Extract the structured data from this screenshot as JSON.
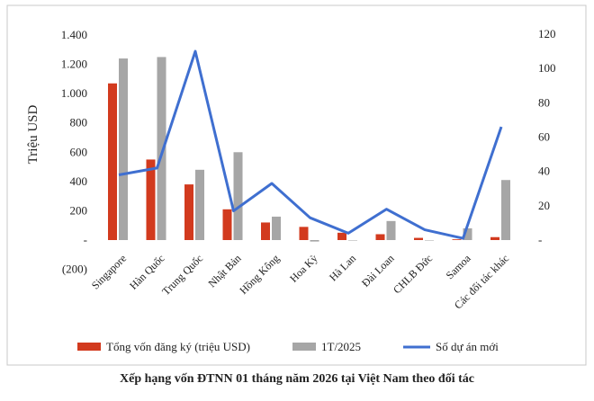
{
  "caption": "Xếp hạng vốn ĐTNN 01 tháng năm 2026 tại Việt Nam theo đối tác",
  "chart_data": {
    "type": "bar",
    "categories": [
      "Singapore",
      "Hàn Quốc",
      "Trung Quốc",
      "Nhật Bản",
      "Hồng Kông",
      "Hoa Kỳ",
      "Hà Lan",
      "Đài Loan",
      "CHLB Đức",
      "Samoa",
      "Các đối tác khác"
    ],
    "series": [
      {
        "name": "Tổng vốn đăng ký (triệu USD)",
        "kind": "bar",
        "axis": "left",
        "color": "#d23a1e",
        "values": [
          1070,
          550,
          380,
          210,
          120,
          90,
          50,
          40,
          15,
          5,
          20
        ]
      },
      {
        "name": "1T/2025",
        "kind": "bar",
        "axis": "left",
        "color": "#a6a6a6",
        "values": [
          1240,
          1250,
          480,
          600,
          160,
          -10,
          0,
          130,
          0,
          80,
          410
        ]
      },
      {
        "name": "Số dự án mới",
        "kind": "line",
        "axis": "right",
        "color": "#3f6fd0",
        "values": [
          38,
          42,
          110,
          17,
          33,
          13,
          4,
          18,
          6,
          1,
          66
        ]
      }
    ],
    "ylabel": "Triệu USD",
    "ylim": [
      -200,
      1400
    ],
    "y_ticks": [
      "(200)",
      "-",
      "200",
      "400",
      "600",
      "800",
      "1.000",
      "1.200",
      "1.400"
    ],
    "y2lim": [
      -20,
      120
    ],
    "y2_ticks": [
      "-",
      "20",
      "40",
      "60",
      "80",
      "100",
      "120"
    ],
    "legend": "bottom",
    "grid": false
  }
}
